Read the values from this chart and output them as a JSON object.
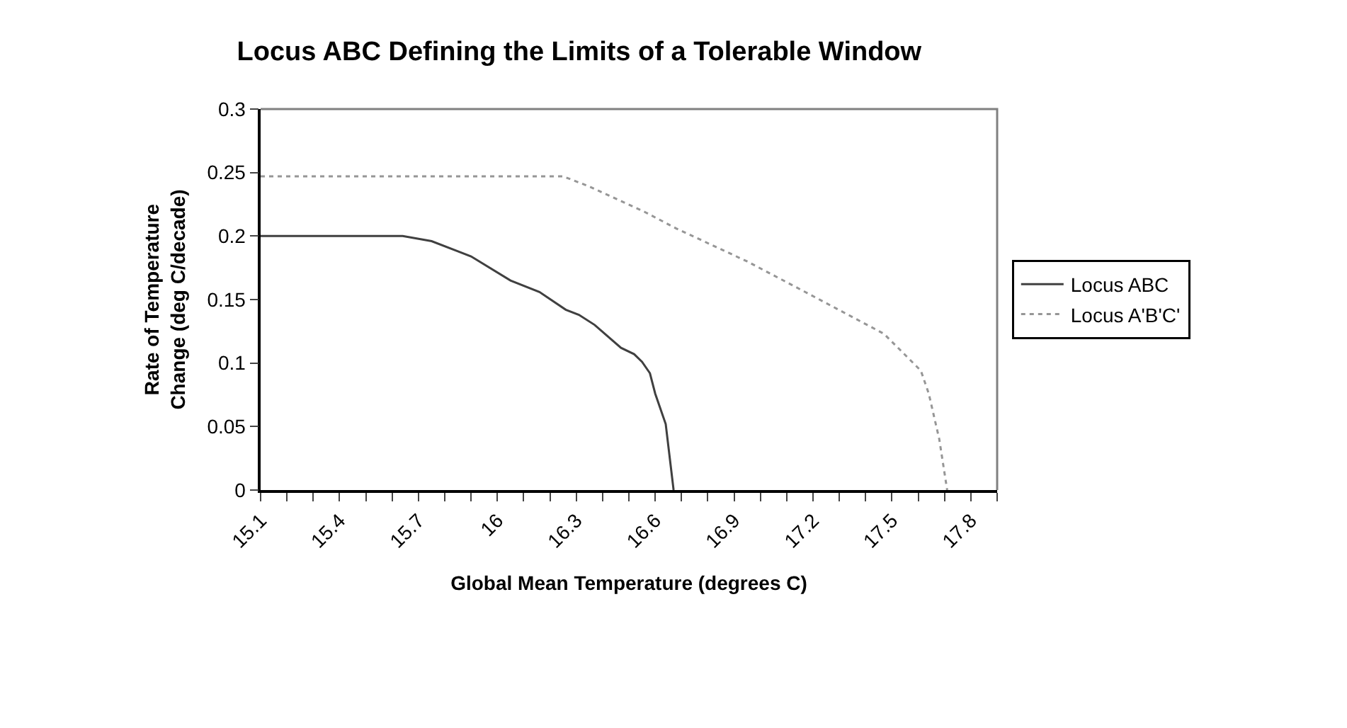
{
  "chart_data": {
    "type": "line",
    "title": "Locus ABC Defining the Limits of a Tolerable Window",
    "xlabel": "Global Mean Temperature (degrees C)",
    "ylabel": "Rate of Temperature Change (deg C/decade)",
    "series": [
      {
        "name": "Locus ABC",
        "color": "#404040",
        "line_style": "solid",
        "x": [
          15.1,
          15.64,
          15.75,
          15.85,
          15.9,
          16.05,
          16.16,
          16.26,
          16.31,
          16.37,
          16.47,
          16.52,
          16.55,
          16.58,
          16.6,
          16.64,
          16.67
        ],
        "values": [
          0.2,
          0.2,
          0.196,
          0.188,
          0.184,
          0.165,
          0.156,
          0.142,
          0.138,
          0.13,
          0.112,
          0.107,
          0.101,
          0.092,
          0.076,
          0.052,
          0
        ]
      },
      {
        "name": "Locus A'B'C'",
        "color": "#969696",
        "line_style": "dotted",
        "x": [
          15.1,
          16.25,
          16.35,
          16.56,
          16.68,
          16.95,
          17.17,
          17.47,
          17.61,
          17.64,
          17.68,
          17.71
        ],
        "values": [
          0.247,
          0.247,
          0.239,
          0.219,
          0.206,
          0.18,
          0.156,
          0.123,
          0.094,
          0.076,
          0.04,
          0
        ]
      }
    ],
    "xlim": [
      15.1,
      17.9
    ],
    "xticks": [
      15.1,
      {
        "value": 15.2,
        "label": null
      },
      {
        "value": 15.3,
        "label": null
      },
      15.4,
      {
        "value": 15.5,
        "label": null
      },
      {
        "value": 15.6,
        "label": null
      },
      15.7,
      {
        "value": 15.8,
        "label": null
      },
      {
        "value": 15.9,
        "label": null
      },
      16,
      {
        "value": 16.1,
        "label": null
      },
      {
        "value": 16.2,
        "label": null
      },
      16.3,
      {
        "value": 16.4,
        "label": null
      },
      {
        "value": 16.5,
        "label": null
      },
      16.6,
      {
        "value": 16.7,
        "label": null
      },
      {
        "value": 16.8,
        "label": null
      },
      16.9,
      {
        "value": 17.0,
        "label": null
      },
      {
        "value": 17.1,
        "label": null
      },
      17.2,
      {
        "value": 17.3,
        "label": null
      },
      {
        "value": 17.4,
        "label": null
      },
      17.5,
      {
        "value": 17.6,
        "label": null
      },
      {
        "value": 17.7,
        "label": null
      },
      17.8,
      {
        "value": 17.9,
        "label": null
      }
    ],
    "ylim": [
      0,
      0.3
    ],
    "yticks": [
      0,
      0.05,
      0.1,
      0.15,
      0.2,
      0.25,
      0.3
    ],
    "legend": "right",
    "marker": "none"
  }
}
